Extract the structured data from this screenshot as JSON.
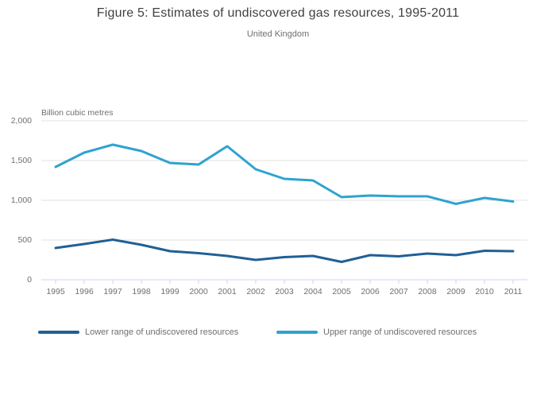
{
  "title": "Figure 5: Estimates of undiscovered gas resources, 1995-2011",
  "subtitle": "United Kingdom",
  "unit_label": "Billion cubic metres",
  "colors": {
    "title_text": "#414141",
    "muted_text": "#6f6f6f",
    "grid": "#e2e2e2",
    "axis": "#ccd6e8",
    "lower_series": "#206095",
    "upper_series": "#2ea3cf"
  },
  "chart_data": {
    "type": "line",
    "title": "Figure 5: Estimates of undiscovered gas resources, 1995-2011",
    "subtitle": "United Kingdom",
    "ylabel": "Billion cubic metres",
    "ylim": [
      0,
      2000
    ],
    "grid": true,
    "legend_position": "bottom",
    "yticks": [
      {
        "value": 0,
        "label": "0"
      },
      {
        "value": 500,
        "label": "500"
      },
      {
        "value": 1000,
        "label": "1,000"
      },
      {
        "value": 1500,
        "label": "1,500"
      },
      {
        "value": 2000,
        "label": "2,000"
      }
    ],
    "categories": [
      "1995",
      "1996",
      "1997",
      "1998",
      "1999",
      "2000",
      "2001",
      "2002",
      "2003",
      "2004",
      "2005",
      "2006",
      "2007",
      "2008",
      "2009",
      "2010",
      "2011"
    ],
    "series": [
      {
        "name": "Lower range of undiscovered resources",
        "color": "#206095",
        "values": [
          400,
          450,
          505,
          440,
          360,
          335,
          300,
          250,
          285,
          300,
          225,
          310,
          295,
          330,
          310,
          365,
          360
        ]
      },
      {
        "name": "Upper range of undiscovered resources",
        "color": "#2ea3cf",
        "values": [
          1420,
          1600,
          1700,
          1620,
          1470,
          1450,
          1680,
          1390,
          1270,
          1250,
          1040,
          1060,
          1050,
          1050,
          955,
          1030,
          985
        ]
      }
    ]
  }
}
